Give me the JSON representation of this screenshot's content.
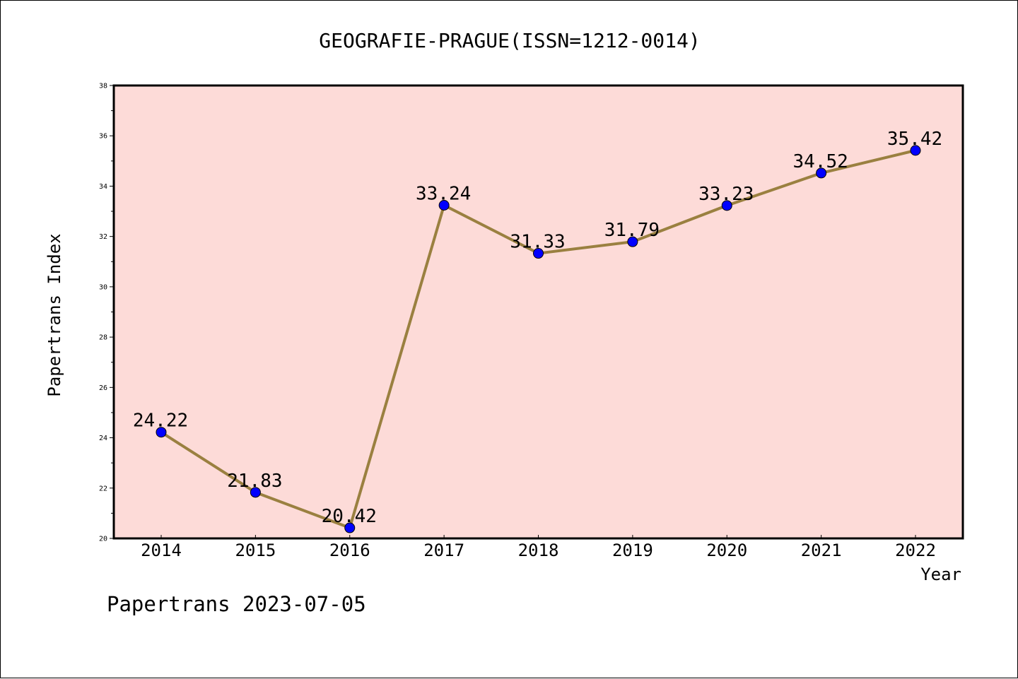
{
  "chart_data": {
    "type": "line",
    "title": "GEOGRAFIE-PRAGUE(ISSN=1212-0014)",
    "xlabel": "Year",
    "ylabel": "Papertrans Index",
    "categories": [
      "2014",
      "2015",
      "2016",
      "2017",
      "2018",
      "2019",
      "2020",
      "2021",
      "2022"
    ],
    "series": [
      {
        "values": [
          24.22,
          21.83,
          20.42,
          33.24,
          31.33,
          31.79,
          33.23,
          34.52,
          35.42
        ],
        "labels": [
          "24.22",
          "21.83",
          "20.42",
          "33.24",
          "31.33",
          "31.79",
          "33.23",
          "34.52",
          "35.42"
        ],
        "line_color": "#9a8040",
        "marker_color": "#0000ff"
      }
    ],
    "ylim": [
      20,
      38
    ],
    "yticks": [
      "20",
      "22",
      "24",
      "26",
      "28",
      "30",
      "32",
      "34",
      "36",
      "38"
    ],
    "grid": false,
    "plot_background": "#fddbd8"
  },
  "footer": {
    "text": "Papertrans 2023-07-05"
  }
}
